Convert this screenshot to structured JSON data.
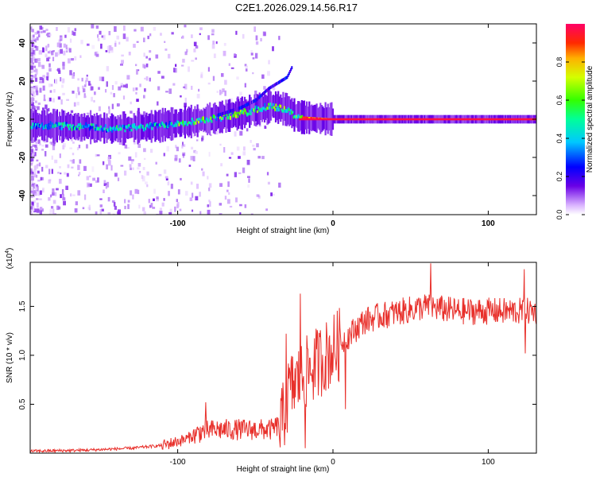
{
  "title": "C2E1.2026.029.14.56.R17",
  "colors": {
    "snr_line": "#e8302b",
    "axis": "#000000",
    "background": "#ffffff"
  },
  "chart_data": [
    {
      "type": "heatmap",
      "name": "spectrogram",
      "xlabel": "Height of straight line (km)",
      "ylabel": "Frequency (Hz)",
      "xlim": [
        -195,
        131
      ],
      "ylim": [
        -50,
        50
      ],
      "x_ticks": [
        -100,
        0,
        100
      ],
      "y_ticks": [
        -40,
        -20,
        0,
        20,
        40
      ],
      "colorbar": {
        "label": "Normalized spectral amplitude",
        "range": [
          0,
          1
        ],
        "ticks": [
          0.0,
          0.2,
          0.4,
          0.6,
          0.8
        ],
        "tick_labels": [
          "0.0",
          "0.2",
          "0.4",
          "0.6",
          "0.8"
        ]
      },
      "ridge": {
        "x": [
          -195,
          -160,
          -140,
          -120,
          -100,
          -80,
          -60,
          -40,
          -30,
          -25,
          -20,
          0,
          131
        ],
        "freq_hz": [
          -3,
          -4,
          -5,
          -4,
          -2,
          0,
          3,
          7,
          5,
          2,
          1,
          0,
          0
        ]
      },
      "branch": {
        "x": [
          -75,
          -60,
          -50,
          -42,
          -30,
          -27
        ],
        "freq_hz": [
          2,
          6,
          10,
          16,
          22,
          27
        ]
      }
    },
    {
      "type": "line",
      "name": "snr",
      "xlabel": "Height of straight line (km)",
      "ylabel": "SNR (10 * v/v)",
      "scale_label": "(x10",
      "scale_exp": "4",
      "scale_close": ")",
      "xlim": [
        -195,
        131
      ],
      "ylim": [
        0,
        1.95
      ],
      "x_ticks": [
        -100,
        0,
        100
      ],
      "y_ticks": [
        0.5,
        1.0,
        1.5
      ],
      "y_tick_labels": [
        "0.5",
        "1.0",
        "1.5"
      ],
      "series": [
        {
          "name": "SNR",
          "envelope_x": [
            -195,
            -160,
            -130,
            -110,
            -95,
            -85,
            -75,
            -55,
            -40,
            -33,
            -28,
            -22,
            -15,
            -8,
            0,
            10,
            20,
            30,
            45,
            60,
            80,
            100,
            120,
            131
          ],
          "envelope_y": [
            0.02,
            0.03,
            0.05,
            0.08,
            0.14,
            0.22,
            0.24,
            0.24,
            0.24,
            0.3,
            0.65,
            0.75,
            0.85,
            0.95,
            1.05,
            1.2,
            1.35,
            1.4,
            1.45,
            1.5,
            1.45,
            1.45,
            1.45,
            1.45
          ],
          "spikes": [
            {
              "x": -82,
              "y": 0.52
            },
            {
              "x": -30,
              "y": 1.22
            },
            {
              "x": -21,
              "y": 1.63
            },
            {
              "x": -18,
              "y": 0.05
            },
            {
              "x": 8,
              "y": 0.45
            },
            {
              "x": 63,
              "y": 1.94
            },
            {
              "x": 123,
              "y": 1.88
            },
            {
              "x": 124,
              "y": 1.02
            }
          ]
        }
      ]
    }
  ]
}
